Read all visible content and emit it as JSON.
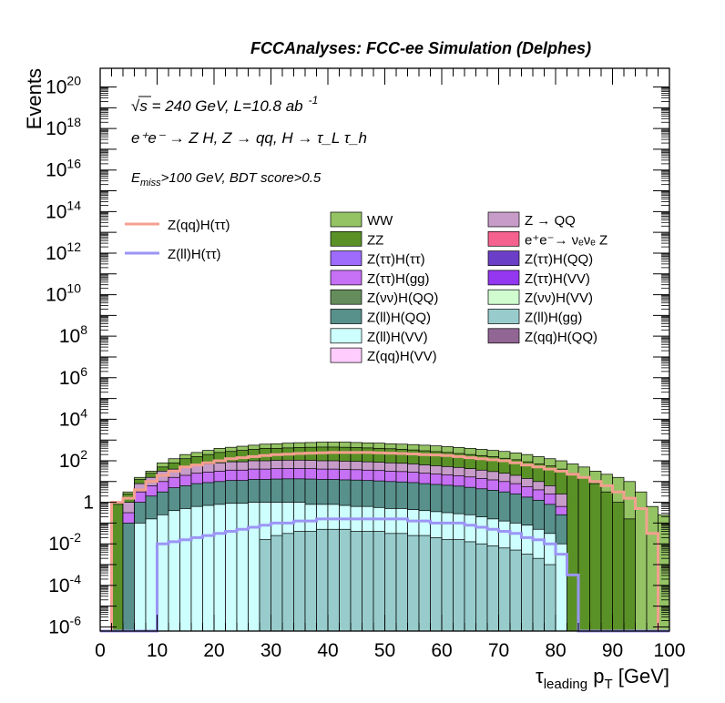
{
  "header": {
    "title": "FCCAnalyses: FCC-ee Simulation (Delphes)"
  },
  "annotations": {
    "line1_sqrt": "√s",
    "line1_rest": " = 240 GeV, L=10.8 ab",
    "line1_sup": "-1",
    "process": "e⁺e⁻ → Z H, Z → qq, H → τ_L τ_h",
    "cut_prefix": "E",
    "cut_sub": "miss",
    "cut_rest": ">100 GeV, BDT score>0.5"
  },
  "chart_data": {
    "type": "histogram_stacked_logy",
    "xlabel_main": "τ",
    "xlabel_sub": "leading",
    "xlabel_mid": " p",
    "xlabel_sub2": "T",
    "xlabel_unit": " [GeV]",
    "ylabel": "Events",
    "xlim": [
      0,
      100
    ],
    "ylim_log10": [
      -6.2,
      20.9
    ],
    "x_ticks": [
      "0",
      "10",
      "20",
      "30",
      "40",
      "50",
      "60",
      "70",
      "80",
      "90",
      "100"
    ],
    "y_ticks_exp": [
      -6,
      -4,
      -2,
      0,
      2,
      4,
      6,
      8,
      10,
      12,
      14,
      16,
      18,
      20
    ],
    "y_tick_special": {
      "0": "1"
    },
    "bin_width": 2,
    "bins": [
      0,
      2,
      4,
      6,
      8,
      10,
      12,
      14,
      16,
      18,
      20,
      22,
      24,
      26,
      28,
      30,
      32,
      34,
      36,
      38,
      40,
      42,
      44,
      46,
      48,
      50,
      52,
      54,
      56,
      58,
      60,
      62,
      64,
      66,
      68,
      70,
      72,
      74,
      76,
      78,
      80,
      82,
      84,
      86,
      88,
      90,
      92,
      94,
      96,
      98
    ],
    "stack_levels_log10": {
      "WW": [
        -6.2,
        0.0,
        0.5,
        1.2,
        1.5,
        1.9,
        2.1,
        2.3,
        2.4,
        2.5,
        2.6,
        2.65,
        2.7,
        2.75,
        2.8,
        2.82,
        2.85,
        2.87,
        2.88,
        2.9,
        2.9,
        2.9,
        2.88,
        2.86,
        2.85,
        2.82,
        2.8,
        2.78,
        2.75,
        2.72,
        2.68,
        2.64,
        2.6,
        2.55,
        2.5,
        2.45,
        2.38,
        2.3,
        2.2,
        2.1,
        2.0,
        1.85,
        1.7,
        1.5,
        1.35,
        1.2,
        1.0,
        0.5,
        -0.2,
        -0.6
      ],
      "ZZ": [
        -6.2,
        -0.1,
        0.4,
        1.1,
        1.4,
        1.7,
        1.9,
        2.1,
        2.2,
        2.3,
        2.4,
        2.45,
        2.5,
        2.55,
        2.6,
        2.6,
        2.62,
        2.64,
        2.65,
        2.66,
        2.66,
        2.65,
        2.64,
        2.62,
        2.6,
        2.58,
        2.55,
        2.52,
        2.48,
        2.44,
        2.4,
        2.35,
        2.3,
        2.25,
        2.2,
        2.12,
        2.05,
        1.95,
        1.85,
        1.75,
        1.6,
        1.4,
        1.2,
        0.9,
        0.5,
        0.0,
        -0.8,
        -6.2,
        -6.2,
        -6.2
      ],
      "Z->QQ": [
        -6.2,
        -6.2,
        0.0,
        0.9,
        1.2,
        1.5,
        1.6,
        1.7,
        1.8,
        1.85,
        1.9,
        1.95,
        1.95,
        2.0,
        2.0,
        2.02,
        2.03,
        2.03,
        2.02,
        2.0,
        2.0,
        1.98,
        1.97,
        1.95,
        1.93,
        1.9,
        1.88,
        1.85,
        1.8,
        1.76,
        1.72,
        1.68,
        1.62,
        1.55,
        1.48,
        1.4,
        1.3,
        1.15,
        1.0,
        0.8,
        0.4,
        -6.2,
        -6.2,
        -6.2,
        -6.2,
        -6.2,
        -6.2,
        -6.2,
        -6.2,
        -6.2
      ],
      "signal_mix": [
        -6.2,
        -6.2,
        -0.5,
        0.5,
        0.8,
        1.0,
        1.2,
        1.3,
        1.4,
        1.45,
        1.5,
        1.55,
        1.55,
        1.6,
        1.6,
        1.62,
        1.63,
        1.63,
        1.62,
        1.6,
        1.6,
        1.58,
        1.57,
        1.55,
        1.53,
        1.5,
        1.48,
        1.45,
        1.4,
        1.36,
        1.32,
        1.28,
        1.22,
        1.15,
        1.08,
        1.0,
        0.9,
        0.75,
        0.6,
        0.4,
        -0.2,
        -6.2,
        -6.2,
        -6.2,
        -6.2,
        -6.2,
        -6.2,
        -6.2,
        -6.2,
        -6.2
      ],
      "Z(ll)H(QQ)": [
        -6.2,
        -6.2,
        -1.0,
        0.0,
        0.3,
        0.5,
        0.7,
        0.8,
        0.9,
        0.95,
        1.0,
        1.05,
        1.05,
        1.1,
        1.1,
        1.12,
        1.13,
        1.13,
        1.12,
        1.1,
        1.1,
        1.08,
        1.07,
        1.05,
        1.03,
        1.0,
        0.98,
        0.95,
        0.9,
        0.86,
        0.82,
        0.78,
        0.72,
        0.65,
        0.58,
        0.5,
        0.4,
        0.25,
        0.1,
        -0.1,
        -0.6,
        -6.2,
        -6.2,
        -6.2,
        -6.2,
        -6.2,
        -6.2,
        -6.2,
        -6.2,
        -6.2
      ],
      "Z(ll)H(VV)": [
        -6.2,
        -6.2,
        -6.2,
        -1.0,
        -0.8,
        -0.6,
        -0.4,
        -0.3,
        -0.2,
        -0.15,
        -0.1,
        -0.05,
        -0.05,
        0.0,
        0.0,
        0.0,
        0.0,
        0.0,
        -0.1,
        -0.1,
        -0.1,
        -0.15,
        -0.2,
        -0.2,
        -0.25,
        -0.3,
        -0.3,
        -0.35,
        -0.4,
        -0.45,
        -0.5,
        -0.55,
        -0.6,
        -0.7,
        -0.8,
        -0.9,
        -1.0,
        -1.1,
        -1.3,
        -1.5,
        -2.0,
        -6.2,
        -6.2,
        -6.2,
        -6.2,
        -6.2,
        -6.2,
        -6.2,
        -6.2,
        -6.2
      ],
      "Z(ll)H(gg)": [
        -6.2,
        -6.2,
        -6.2,
        -6.2,
        -6.2,
        -6.2,
        -6.2,
        -6.2,
        -6.2,
        -6.2,
        -6.2,
        -6.2,
        -6.2,
        -6.2,
        -1.8,
        -1.6,
        -1.5,
        -1.4,
        -1.4,
        -1.3,
        -1.3,
        -1.3,
        -1.4,
        -1.4,
        -1.4,
        -1.5,
        -1.5,
        -1.6,
        -1.6,
        -1.7,
        -1.8,
        -1.8,
        -1.9,
        -2.0,
        -2.1,
        -2.2,
        -2.3,
        -2.5,
        -2.7,
        -3.0,
        -6.2,
        -6.2,
        -6.2,
        -6.2,
        -6.2,
        -6.2,
        -6.2,
        -6.2,
        -6.2,
        -6.2
      ]
    },
    "series": [
      {
        "name": "Z(qq)H(ττ)",
        "kind": "line",
        "color": "#f4a08f",
        "values_log10": [
          -6.2,
          0.0,
          0.2,
          0.6,
          1.0,
          1.3,
          1.5,
          1.7,
          1.8,
          1.9,
          2.0,
          2.1,
          2.15,
          2.2,
          2.25,
          2.3,
          2.32,
          2.35,
          2.37,
          2.38,
          2.4,
          2.4,
          2.4,
          2.4,
          2.38,
          2.37,
          2.35,
          2.33,
          2.3,
          2.28,
          2.25,
          2.2,
          2.15,
          2.1,
          2.05,
          2.0,
          1.9,
          1.8,
          1.7,
          1.6,
          1.5,
          1.35,
          1.2,
          1.0,
          0.8,
          0.5,
          0.2,
          -0.3,
          -1.5,
          -6.2
        ]
      },
      {
        "name": "Z(ll)H(ττ)",
        "kind": "line",
        "color": "#9b95f4",
        "values_log10": [
          -6.2,
          -6.2,
          -6.2,
          -6.2,
          -6.2,
          -2.0,
          -1.9,
          -1.8,
          -1.7,
          -1.6,
          -1.5,
          -1.4,
          -1.3,
          -1.2,
          -1.1,
          -1.0,
          -1.0,
          -0.9,
          -0.9,
          -0.8,
          -0.8,
          -0.8,
          -0.8,
          -0.8,
          -0.8,
          -0.8,
          -0.8,
          -0.9,
          -0.9,
          -1.0,
          -1.0,
          -1.0,
          -1.1,
          -1.2,
          -1.3,
          -1.4,
          -1.5,
          -1.7,
          -1.8,
          -2.0,
          -2.5,
          -3.5,
          -6.2,
          -6.2,
          -6.2,
          -6.2,
          -6.2,
          -6.2,
          -6.2,
          -6.2
        ]
      }
    ],
    "legend_left": [
      {
        "name": "Z(qq)H(ττ)",
        "color": "#f4a08f",
        "kind": "line"
      },
      {
        "name": "Z(ll)H(ττ)",
        "color": "#9b95f4",
        "kind": "line"
      }
    ],
    "legend_col1": [
      {
        "name": "WW",
        "color": "#94c364"
      },
      {
        "name": "ZZ",
        "color": "#5a9127"
      },
      {
        "name": "Z(ττ)H(ττ)",
        "color": "#9e6bfc"
      },
      {
        "name": "Z(ττ)H(gg)",
        "color": "#c670f5"
      },
      {
        "name": "Z(νν)H(QQ)",
        "color": "#658d5c"
      },
      {
        "name": "Z(ll)H(QQ)",
        "color": "#58908c"
      },
      {
        "name": "Z(ll)H(VV)",
        "color": "#ccfffd"
      },
      {
        "name": "Z(qq)H(VV)",
        "color": "#ffccfd"
      }
    ],
    "legend_col2": [
      {
        "name": "Z → QQ",
        "color": "#c79cc9"
      },
      {
        "name": "e⁺e⁻→ νₑνₑ Z",
        "color": "#f6628f"
      },
      {
        "name": "Z(ττ)H(QQ)",
        "color": "#6b3ec7"
      },
      {
        "name": "Z(ττ)H(VV)",
        "color": "#9437f1"
      },
      {
        "name": "Z(νν)H(VV)",
        "color": "#d0fcd0"
      },
      {
        "name": "Z(ll)H(gg)",
        "color": "#98cccc"
      },
      {
        "name": "Z(qq)H(QQ)",
        "color": "#926694"
      }
    ]
  }
}
